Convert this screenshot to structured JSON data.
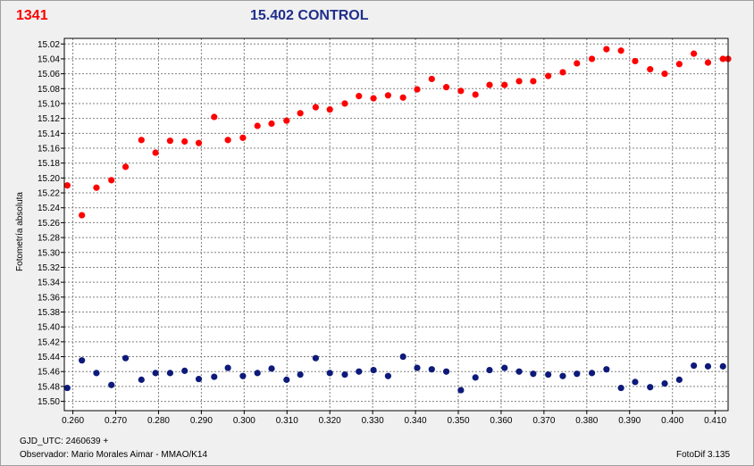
{
  "header": {
    "left_title": "1341",
    "center_title": "15.402 CONTROL"
  },
  "footer": {
    "gjd": "GJD_UTC: 2460639 +",
    "observer": "Observador: Mario Morales Aimar - MMAO/K14",
    "software": "FotoDif 3.135"
  },
  "colors": {
    "series1": "#ff0000",
    "series2": "#0d1a7a",
    "grid": "#808080",
    "plot_bg": "#ffffff"
  },
  "chart_data": {
    "type": "scatter",
    "title": "15.402 CONTROL",
    "xlabel": "",
    "ylabel": "Fotometría absoluta",
    "xlim": [
      0.258,
      0.413
    ],
    "ylim": [
      15.5125,
      15.0125
    ],
    "y_inverted": true,
    "grid": true,
    "x_ticks": [
      "0.260",
      "0.270",
      "0.280",
      "0.290",
      "0.300",
      "0.310",
      "0.320",
      "0.330",
      "0.340",
      "0.350",
      "0.360",
      "0.370",
      "0.380",
      "0.390",
      "0.400",
      "0.410"
    ],
    "y_ticks": [
      "15.02",
      "15.04",
      "15.06",
      "15.08",
      "15.10",
      "15.12",
      "15.14",
      "15.16",
      "15.18",
      "15.20",
      "15.22",
      "15.24",
      "15.26",
      "15.28",
      "15.30",
      "15.32",
      "15.34",
      "15.36",
      "15.38",
      "15.40",
      "15.42",
      "15.44",
      "15.46",
      "15.48",
      "15.50"
    ],
    "series": [
      {
        "color": "#ff0000",
        "x": [
          0.2587,
          0.2621,
          0.2655,
          0.269,
          0.2723,
          0.276,
          0.2793,
          0.2827,
          0.2861,
          0.2894,
          0.293,
          0.2962,
          0.2997,
          0.3031,
          0.3064,
          0.3099,
          0.3131,
          0.3167,
          0.32,
          0.3235,
          0.3268,
          0.3302,
          0.3336,
          0.3371,
          0.3404,
          0.3438,
          0.3472,
          0.3506,
          0.354,
          0.3573,
          0.3608,
          0.3642,
          0.3675,
          0.371,
          0.3744,
          0.3777,
          0.3812,
          0.3846,
          0.388,
          0.3913,
          0.3948,
          0.3982,
          0.4016,
          0.405,
          0.4083,
          0.4118,
          0.413
        ],
        "y": [
          15.21,
          15.25,
          15.213,
          15.203,
          15.185,
          15.149,
          15.166,
          15.15,
          15.151,
          15.153,
          15.118,
          15.149,
          15.146,
          15.13,
          15.127,
          15.123,
          15.113,
          15.105,
          15.108,
          15.1,
          15.09,
          15.093,
          15.089,
          15.092,
          15.081,
          15.067,
          15.078,
          15.083,
          15.088,
          15.075,
          15.075,
          15.07,
          15.07,
          15.063,
          15.058,
          15.046,
          15.04,
          15.027,
          15.029,
          15.043,
          15.054,
          15.06,
          15.047,
          15.033,
          15.045,
          15.04,
          15.04
        ]
      },
      {
        "color": "#0d1a7a",
        "x": [
          0.2587,
          0.2621,
          0.2655,
          0.269,
          0.2723,
          0.276,
          0.2793,
          0.2827,
          0.2861,
          0.2894,
          0.293,
          0.2962,
          0.2997,
          0.3031,
          0.3064,
          0.3099,
          0.3131,
          0.3167,
          0.32,
          0.3235,
          0.3268,
          0.3302,
          0.3336,
          0.3371,
          0.3404,
          0.3438,
          0.3472,
          0.3506,
          0.354,
          0.3573,
          0.3608,
          0.3642,
          0.3675,
          0.371,
          0.3744,
          0.3777,
          0.3812,
          0.3846,
          0.388,
          0.3913,
          0.3948,
          0.3982,
          0.4016,
          0.405,
          0.4083,
          0.4118
        ],
        "y": [
          15.482,
          15.445,
          15.462,
          15.478,
          15.442,
          15.471,
          15.462,
          15.462,
          15.459,
          15.47,
          15.467,
          15.455,
          15.466,
          15.462,
          15.456,
          15.471,
          15.464,
          15.442,
          15.462,
          15.464,
          15.46,
          15.458,
          15.466,
          15.44,
          15.455,
          15.457,
          15.46,
          15.485,
          15.468,
          15.458,
          15.455,
          15.46,
          15.463,
          15.464,
          15.466,
          15.463,
          15.462,
          15.457,
          15.482,
          15.474,
          15.481,
          15.476,
          15.471,
          15.452,
          15.453,
          15.453
        ]
      }
    ]
  }
}
